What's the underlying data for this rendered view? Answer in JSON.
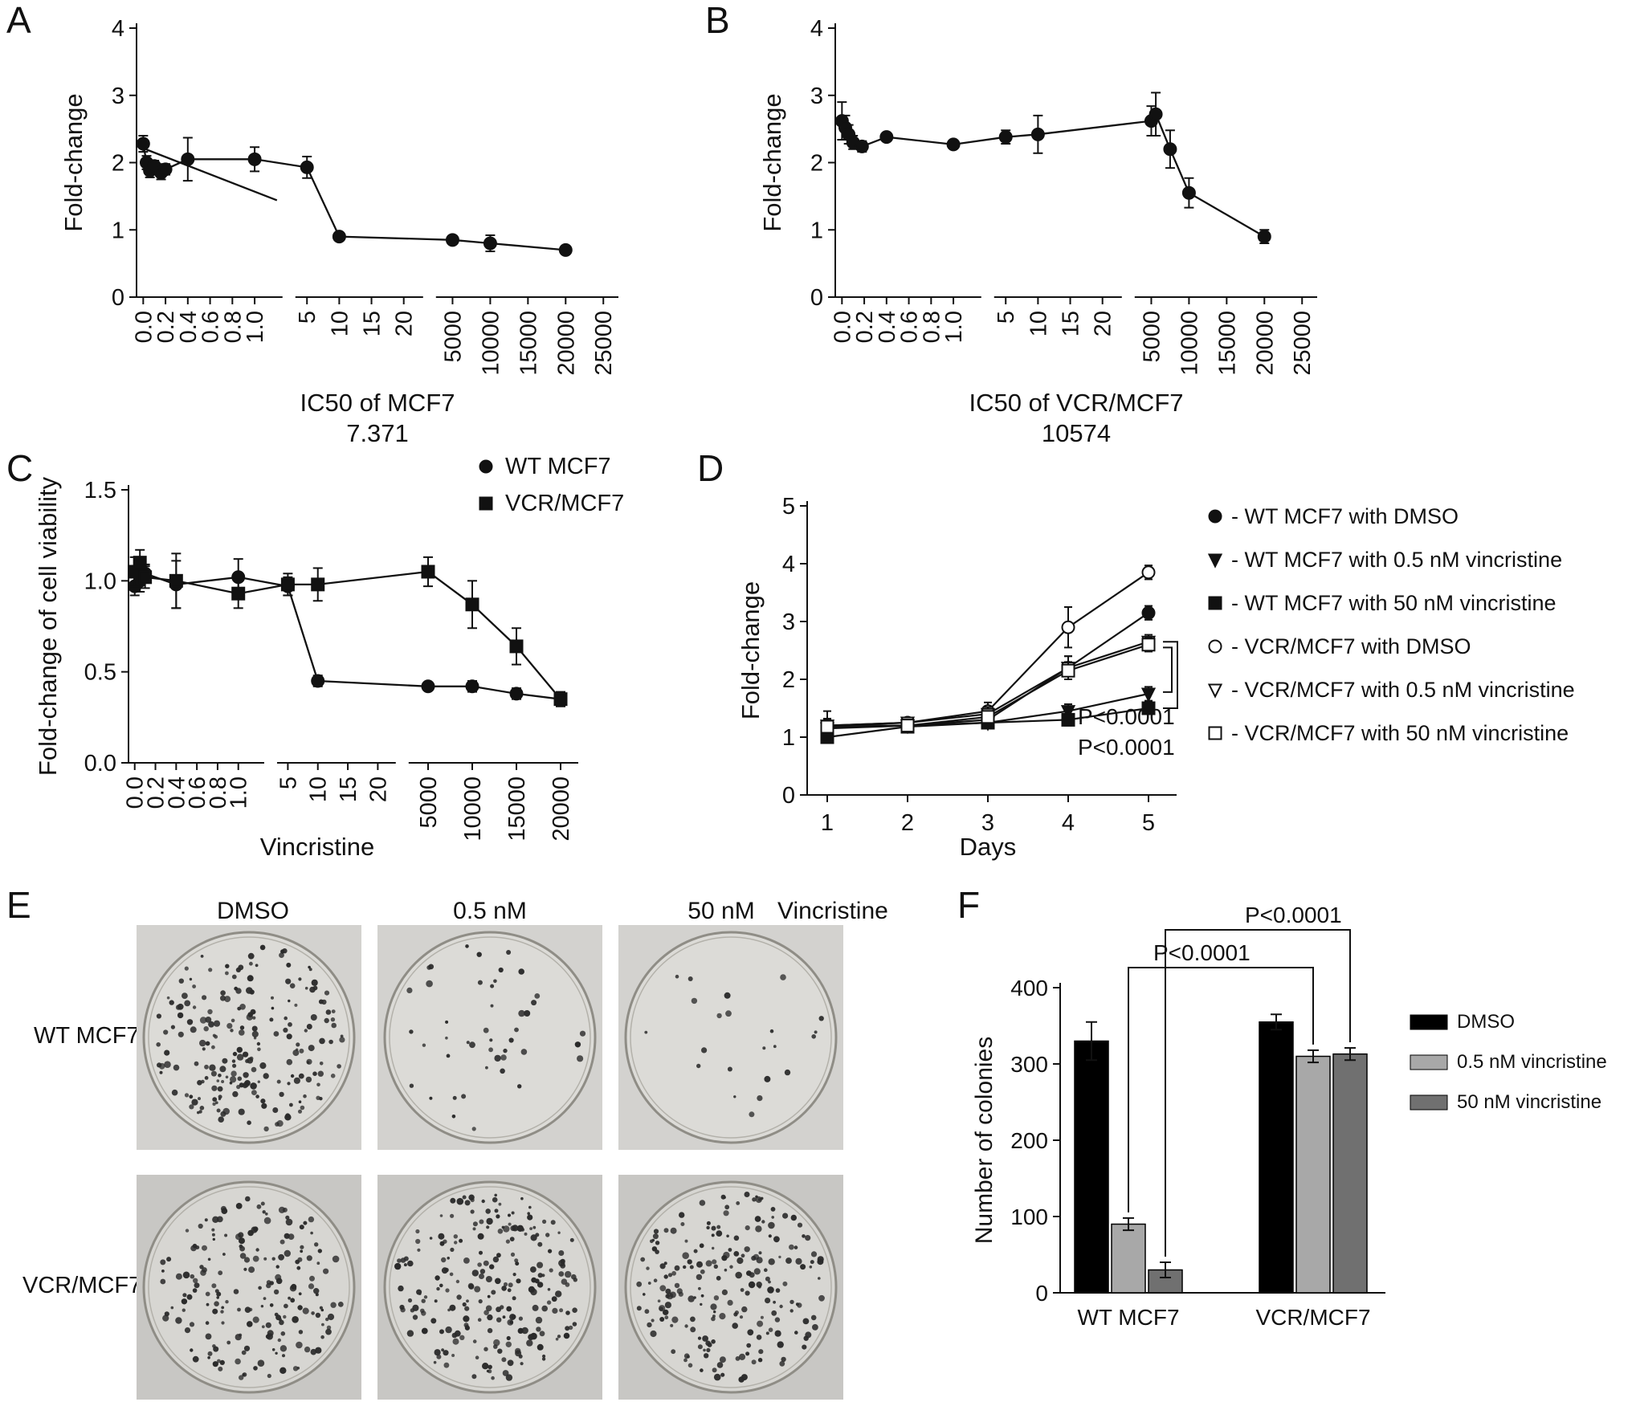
{
  "figure": {
    "panel_letters": {
      "A": "A",
      "B": "B",
      "C": "C",
      "D": "D",
      "E": "E",
      "F": "F"
    }
  },
  "chart_data": [
    {
      "panel": "A",
      "type": "scatter",
      "ylabel": "Fold-change",
      "ylim": [
        0,
        4
      ],
      "yticks": [
        "0",
        "1",
        "2",
        "3",
        "4"
      ],
      "xlabel": "IC50 of MCF7",
      "xlabel2": "7.371",
      "x_segments": [
        {
          "range": [
            -0.06,
            1.25
          ],
          "values": [
            0,
            0.2,
            0.4,
            0.6,
            0.8,
            1.0
          ],
          "labels": [
            "0.0",
            "0.2",
            "0.4",
            "0.6",
            "0.8",
            "1.0"
          ]
        },
        {
          "range": [
            3.2,
            23
          ],
          "values": [
            5,
            10,
            15,
            20
          ],
          "labels": [
            "5",
            "10",
            "15",
            "20"
          ]
        },
        {
          "range": [
            2800,
            27000
          ],
          "values": [
            5000,
            10000,
            15000,
            20000,
            25000
          ],
          "labels": [
            "5000",
            "10000",
            "15000",
            "20000",
            "25000"
          ]
        }
      ],
      "series": [
        {
          "name": "MCF7",
          "marker": "circle",
          "open": false,
          "points": [
            {
              "x": 0,
              "y": 2.28,
              "e": 0.12
            },
            {
              "x": 0.03,
              "y": 2.0,
              "e": 0.1
            },
            {
              "x": 0.06,
              "y": 1.88,
              "e": 0.1
            },
            {
              "x": 0.1,
              "y": 1.95,
              "e": 0.08
            },
            {
              "x": 0.16,
              "y": 1.85,
              "e": 0.1
            },
            {
              "x": 0.2,
              "y": 1.9,
              "e": 0.08
            },
            {
              "x": 0.4,
              "y": 2.05,
              "e": 0.32
            },
            {
              "x": 1.0,
              "y": 2.05,
              "e": 0.18
            },
            {
              "x": 5,
              "y": 1.93,
              "e": 0.16
            },
            {
              "x": 10,
              "y": 0.9,
              "e": 0.05
            },
            {
              "x": 5000,
              "y": 0.85,
              "e": 0.06
            },
            {
              "x": 10000,
              "y": 0.8,
              "e": 0.12
            },
            {
              "x": 20000,
              "y": 0.7,
              "e": 0.06
            }
          ]
        }
      ],
      "fit_lines": [
        {
          "x1": 0.02,
          "y1": 2.2,
          "x2": 1.2,
          "y2": 1.44
        }
      ]
    },
    {
      "panel": "B",
      "type": "scatter",
      "ylabel": "Fold-change",
      "ylim": [
        0,
        4
      ],
      "yticks": [
        "0",
        "1",
        "2",
        "3",
        "4"
      ],
      "xlabel": "IC50 of VCR/MCF7",
      "xlabel2": "10574",
      "x_segments": [
        {
          "range": [
            -0.06,
            1.25
          ],
          "values": [
            0,
            0.2,
            0.4,
            0.6,
            0.8,
            1.0
          ],
          "labels": [
            "0.0",
            "0.2",
            "0.4",
            "0.6",
            "0.8",
            "1.0"
          ]
        },
        {
          "range": [
            3.2,
            23
          ],
          "values": [
            5,
            10,
            15,
            20
          ],
          "labels": [
            "5",
            "10",
            "15",
            "20"
          ]
        },
        {
          "range": [
            2800,
            27000
          ],
          "values": [
            5000,
            10000,
            15000,
            20000,
            25000
          ],
          "labels": [
            "5000",
            "10000",
            "15000",
            "20000",
            "25000"
          ]
        }
      ],
      "series": [
        {
          "name": "VCR/MCF7",
          "marker": "circle",
          "open": false,
          "points": [
            {
              "x": 0,
              "y": 2.62,
              "e": 0.28
            },
            {
              "x": 0.03,
              "y": 2.52,
              "e": 0.18
            },
            {
              "x": 0.06,
              "y": 2.42,
              "e": 0.14
            },
            {
              "x": 0.1,
              "y": 2.3,
              "e": 0.1
            },
            {
              "x": 0.18,
              "y": 2.24,
              "e": 0.08
            },
            {
              "x": 0.4,
              "y": 2.38,
              "e": 0.05
            },
            {
              "x": 1.0,
              "y": 2.27,
              "e": 0.05
            },
            {
              "x": 5,
              "y": 2.38,
              "e": 0.1
            },
            {
              "x": 10,
              "y": 2.42,
              "e": 0.28
            },
            {
              "x": 5000,
              "y": 2.62,
              "e": 0.22
            },
            {
              "x": 5600,
              "y": 2.72,
              "e": 0.32
            },
            {
              "x": 7500,
              "y": 2.2,
              "e": 0.28
            },
            {
              "x": 10000,
              "y": 1.55,
              "e": 0.22
            },
            {
              "x": 20000,
              "y": 0.9,
              "e": 0.1
            }
          ]
        }
      ],
      "fit_lines": []
    },
    {
      "panel": "C",
      "type": "scatter",
      "ylabel": "Fold-change of cell viability",
      "ylim": [
        0,
        1.5
      ],
      "yticks": [
        "0.0",
        "0.5",
        "1.0",
        "1.5"
      ],
      "xlabel": "Vincristine",
      "xlabel2": "",
      "x_segments": [
        {
          "range": [
            -0.06,
            1.25
          ],
          "values": [
            0,
            0.2,
            0.4,
            0.6,
            0.8,
            1.0
          ],
          "labels": [
            "0.0",
            "0.2",
            "0.4",
            "0.6",
            "0.8",
            "1.0"
          ]
        },
        {
          "range": [
            3.2,
            23
          ],
          "values": [
            5,
            10,
            15,
            20
          ],
          "labels": [
            "5",
            "10",
            "15",
            "20"
          ]
        },
        {
          "range": [
            2800,
            22000
          ],
          "values": [
            5000,
            10000,
            15000,
            20000
          ],
          "labels": [
            "5000",
            "10000",
            "15000",
            "20000"
          ]
        }
      ],
      "legend": [
        {
          "label": "WT MCF7",
          "marker": "circle",
          "open": false
        },
        {
          "label": "VCR/MCF7",
          "marker": "square",
          "open": false
        }
      ],
      "series": [
        {
          "name": "WT MCF7",
          "marker": "circle",
          "open": false,
          "points": [
            {
              "x": 0,
              "y": 0.97,
              "e": 0.05
            },
            {
              "x": 0.05,
              "y": 1.0,
              "e": 0.06
            },
            {
              "x": 0.1,
              "y": 1.04,
              "e": 0.05
            },
            {
              "x": 0.4,
              "y": 0.98,
              "e": 0.13
            },
            {
              "x": 1.0,
              "y": 1.02,
              "e": 0.1
            },
            {
              "x": 5,
              "y": 0.97,
              "e": 0.05
            },
            {
              "x": 10,
              "y": 0.45,
              "e": 0.03
            },
            {
              "x": 5000,
              "y": 0.42,
              "e": 0.02
            },
            {
              "x": 10000,
              "y": 0.42,
              "e": 0.03
            },
            {
              "x": 15000,
              "y": 0.38,
              "e": 0.03
            },
            {
              "x": 20000,
              "y": 0.35,
              "e": 0.02
            }
          ]
        },
        {
          "name": "VCR/MCF7",
          "marker": "square",
          "open": false,
          "points": [
            {
              "x": 0,
              "y": 1.05,
              "e": 0.08
            },
            {
              "x": 0.05,
              "y": 1.1,
              "e": 0.07
            },
            {
              "x": 0.1,
              "y": 1.02,
              "e": 0.06
            },
            {
              "x": 0.4,
              "y": 1.0,
              "e": 0.15
            },
            {
              "x": 1.0,
              "y": 0.93,
              "e": 0.08
            },
            {
              "x": 5,
              "y": 0.98,
              "e": 0.06
            },
            {
              "x": 10,
              "y": 0.98,
              "e": 0.09
            },
            {
              "x": 5000,
              "y": 1.05,
              "e": 0.08
            },
            {
              "x": 10000,
              "y": 0.87,
              "e": 0.13
            },
            {
              "x": 15000,
              "y": 0.64,
              "e": 0.1
            },
            {
              "x": 20000,
              "y": 0.35,
              "e": 0.04
            }
          ]
        }
      ],
      "fit_lines": []
    },
    {
      "panel": "D",
      "type": "line",
      "ylabel": "Fold-change",
      "ylim": [
        0,
        5
      ],
      "yticks": [
        "0",
        "1",
        "2",
        "3",
        "4",
        "5"
      ],
      "xlabel": "Days",
      "x": [
        1,
        2,
        3,
        4,
        5
      ],
      "xticks": [
        "1",
        "2",
        "3",
        "4",
        "5"
      ],
      "series": [
        {
          "name": "- WT MCF7 with DMSO",
          "marker": "circle",
          "open": false,
          "values": [
            1.2,
            1.2,
            1.3,
            2.2,
            3.15
          ],
          "errors": [
            0.25,
            0.08,
            0.12,
            0.2,
            0.12
          ]
        },
        {
          "name": "- WT MCF7 with 0.5 nM vincristine",
          "marker": "triangle",
          "open": false,
          "values": [
            1.15,
            1.2,
            1.25,
            1.45,
            1.75
          ],
          "errors": [
            0.1,
            0.08,
            0.1,
            0.12,
            0.12
          ]
        },
        {
          "name": "- WT MCF7 with 50 nM vincristine",
          "marker": "square",
          "open": false,
          "values": [
            1.0,
            1.18,
            1.25,
            1.3,
            1.5
          ],
          "errors": [
            0.08,
            0.08,
            0.1,
            0.1,
            0.1
          ]
        },
        {
          "name": "- VCR/MCF7 with DMSO",
          "marker": "circle",
          "open": true,
          "values": [
            1.2,
            1.25,
            1.45,
            2.9,
            3.85
          ],
          "errors": [
            0.12,
            0.08,
            0.15,
            0.35,
            0.12
          ]
        },
        {
          "name": "- VCR/MCF7 with 0.5 nM vincristine",
          "marker": "triangle",
          "open": true,
          "values": [
            1.2,
            1.25,
            1.4,
            2.2,
            2.65
          ],
          "errors": [
            0.1,
            0.08,
            0.12,
            0.2,
            0.12
          ]
        },
        {
          "name": "- VCR/MCF7 with 50 nM vincristine",
          "marker": "square",
          "open": true,
          "values": [
            1.18,
            1.2,
            1.35,
            2.15,
            2.6
          ],
          "errors": [
            0.1,
            0.08,
            0.1,
            0.15,
            0.12
          ]
        }
      ],
      "annotations": [
        "P<0.0001",
        "P<0.0001"
      ]
    },
    {
      "panel": "F",
      "type": "bar",
      "ylabel": "Number of colonies",
      "ylim": [
        0,
        400
      ],
      "yticks": [
        "0",
        "100",
        "200",
        "300",
        "400"
      ],
      "categories": [
        "WT MCF7",
        "VCR/MCF7"
      ],
      "series": [
        {
          "name": "DMSO",
          "color": "#000000",
          "values": [
            330,
            355
          ],
          "errors": [
            25,
            10
          ]
        },
        {
          "name": "0.5 nM vincristine",
          "color": "#a8a8a8",
          "values": [
            90,
            310
          ],
          "errors": [
            8,
            8
          ]
        },
        {
          "name": "50 nM vincristine",
          "color": "#707070",
          "values": [
            30,
            313
          ],
          "errors": [
            10,
            8
          ]
        }
      ],
      "annotations": [
        "P<0.0001",
        "P<0.0001"
      ]
    }
  ],
  "panel_e": {
    "column_headers": [
      "DMSO",
      "0.5 nM",
      "50 nM"
    ],
    "header_suffix": "Vincristine",
    "rows": [
      {
        "label": "WT MCF7",
        "colony_counts": [
          210,
          45,
          22
        ]
      },
      {
        "label": "VCR/MCF7",
        "colony_counts": [
          190,
          230,
          215
        ]
      }
    ]
  }
}
